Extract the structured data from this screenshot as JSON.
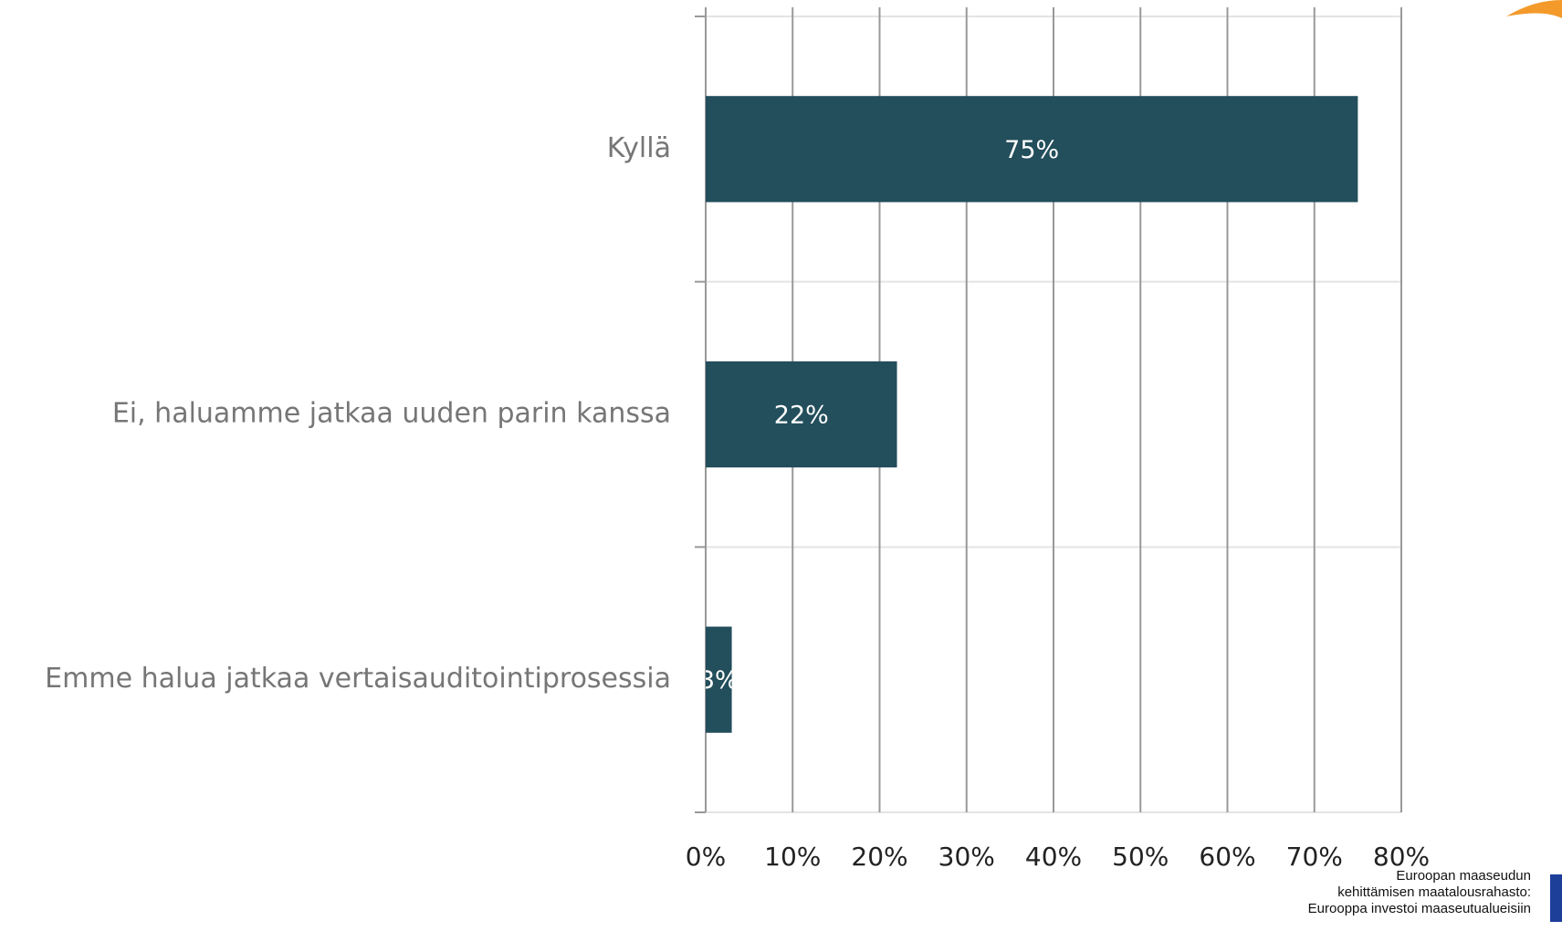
{
  "chart_data": {
    "type": "bar",
    "orientation": "horizontal",
    "categories": [
      "Kyllä",
      "Ei, haluamme jatkaa uuden parin kanssa",
      "Emme halua jatkaa vertaisauditointiprosessia"
    ],
    "values": [
      75,
      22,
      3
    ],
    "value_labels": [
      "75%",
      "22%",
      "3%"
    ],
    "color": "#234e5c",
    "xlim": [
      0,
      80
    ],
    "xticks": [
      {
        "value": 0,
        "label": "0%"
      },
      {
        "value": 10,
        "label": "10%"
      },
      {
        "value": 20,
        "label": "20%"
      },
      {
        "value": 30,
        "label": "30%"
      },
      {
        "value": 40,
        "label": "40%"
      },
      {
        "value": 50,
        "label": "50%"
      },
      {
        "value": 60,
        "label": "60%"
      },
      {
        "value": 70,
        "label": "70%"
      },
      {
        "value": 80,
        "label": "80%"
      }
    ],
    "grid": true
  },
  "footer": {
    "lines": [
      "Euroopan maaseudun",
      "kehittämisen maatalousrahasto:",
      "Eurooppa investoi maaseutualueisiin"
    ]
  }
}
